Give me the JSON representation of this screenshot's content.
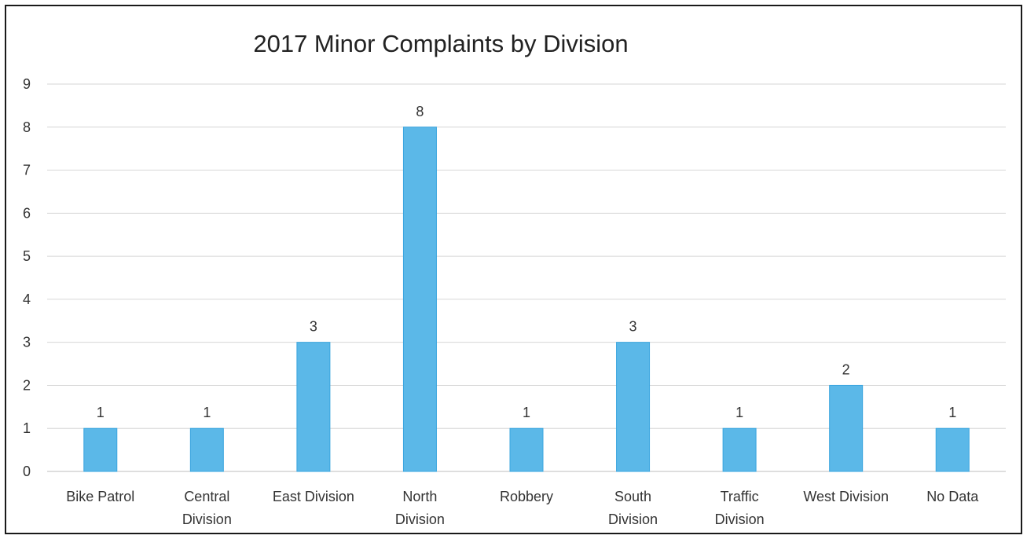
{
  "chart_data": {
    "type": "bar",
    "title": "2017 Minor Complaints by Division",
    "xlabel": "",
    "ylabel": "",
    "categories": [
      [
        "Bike Patrol"
      ],
      [
        "Central",
        "Division"
      ],
      [
        "East Division"
      ],
      [
        "North",
        "Division"
      ],
      [
        "Robbery"
      ],
      [
        "South",
        "Division"
      ],
      [
        "Traffic",
        "Division"
      ],
      [
        "West Division"
      ],
      [
        "No Data"
      ]
    ],
    "values": [
      1,
      1,
      3,
      8,
      1,
      3,
      1,
      2,
      1
    ],
    "ylim": [
      0,
      9
    ],
    "yticks": [
      0,
      1,
      2,
      3,
      4,
      5,
      6,
      7,
      8,
      9
    ],
    "grid": true,
    "legend": "none",
    "data_labels": true,
    "colors": {
      "bar_fill": "#5bb8e8",
      "bar_stroke": "#3aa6df",
      "grid": "#d6d6d6",
      "text": "#333333"
    }
  }
}
